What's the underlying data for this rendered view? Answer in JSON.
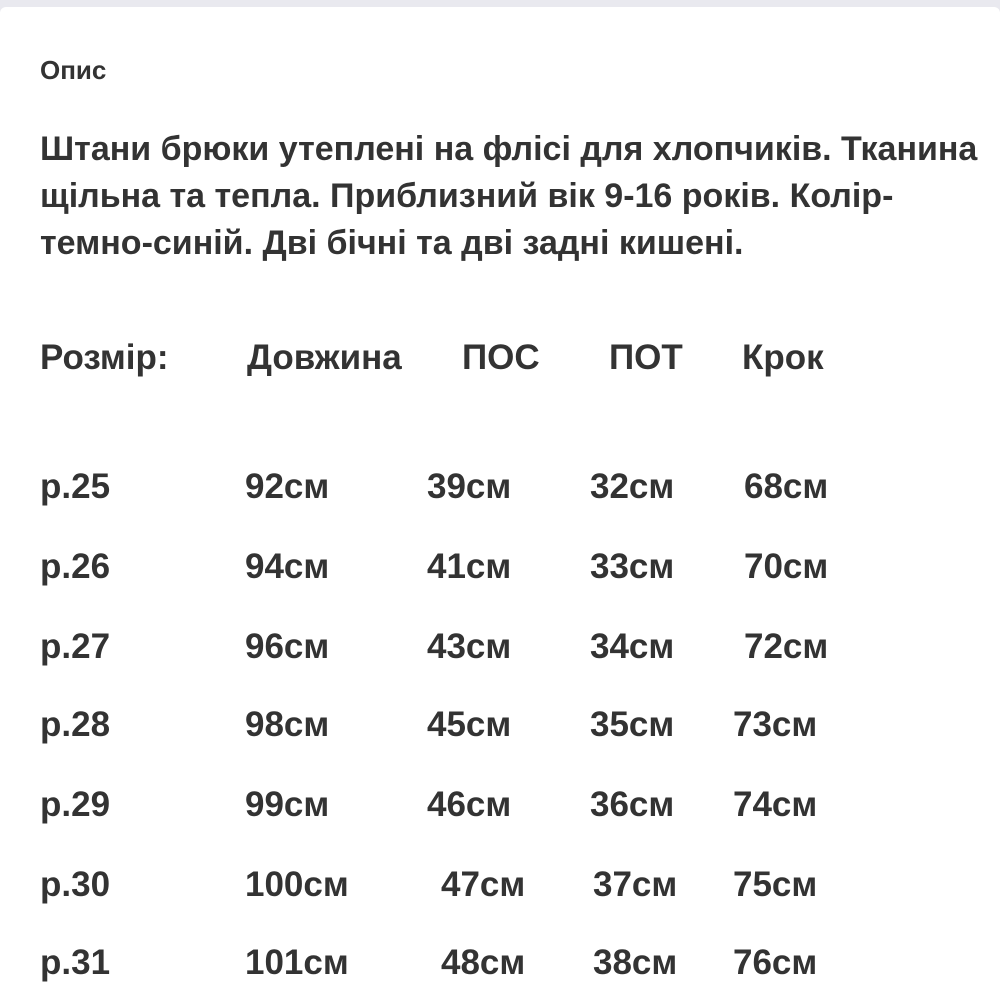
{
  "section_title": "Опис",
  "description": "Штани брюки утеплені на флісі для хлопчиків. Тканина щільна та тепла. Приблизний вік 9-16 років. Колір-темно-синій. Дві бічні та дві задні кишені.",
  "size_table": {
    "headers": [
      "Розмір:",
      "Довжина",
      "ПОС",
      "ПОТ",
      "Крок"
    ],
    "rows": [
      [
        "р.25",
        "92см",
        "39см",
        "32см",
        "68см"
      ],
      [
        "р.26",
        "94см",
        "41см",
        "33см",
        "70см"
      ],
      [
        "р.27",
        "96см",
        "43см",
        "34см",
        "72см"
      ],
      [
        "р.28",
        "98см",
        "45см",
        "35см",
        "73см"
      ],
      [
        "р.29",
        "99см",
        "46см",
        "36см",
        "74см"
      ],
      [
        "р.30",
        "100см",
        "47см",
        "37см",
        "75см"
      ],
      [
        "р.31",
        "101см",
        "48см",
        "38см",
        "76см"
      ]
    ]
  }
}
